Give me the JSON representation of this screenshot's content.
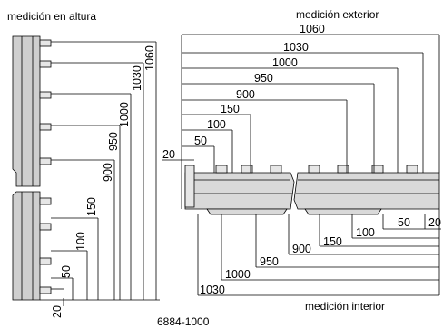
{
  "labels": {
    "height": "medición en altura",
    "exterior": "medición exterior",
    "interior": "medición interior",
    "part_number": "6884-1000"
  },
  "vertical_measures": [
    "20",
    "50",
    "100",
    "150",
    "900",
    "950",
    "1000",
    "1030",
    "1060"
  ],
  "exterior_measures": [
    "1060",
    "1030",
    "1000",
    "950",
    "900",
    "150",
    "100",
    "50",
    "20"
  ],
  "interior_measures": [
    "20",
    "50",
    "100",
    "150",
    "900",
    "950",
    "1000",
    "1030"
  ]
}
